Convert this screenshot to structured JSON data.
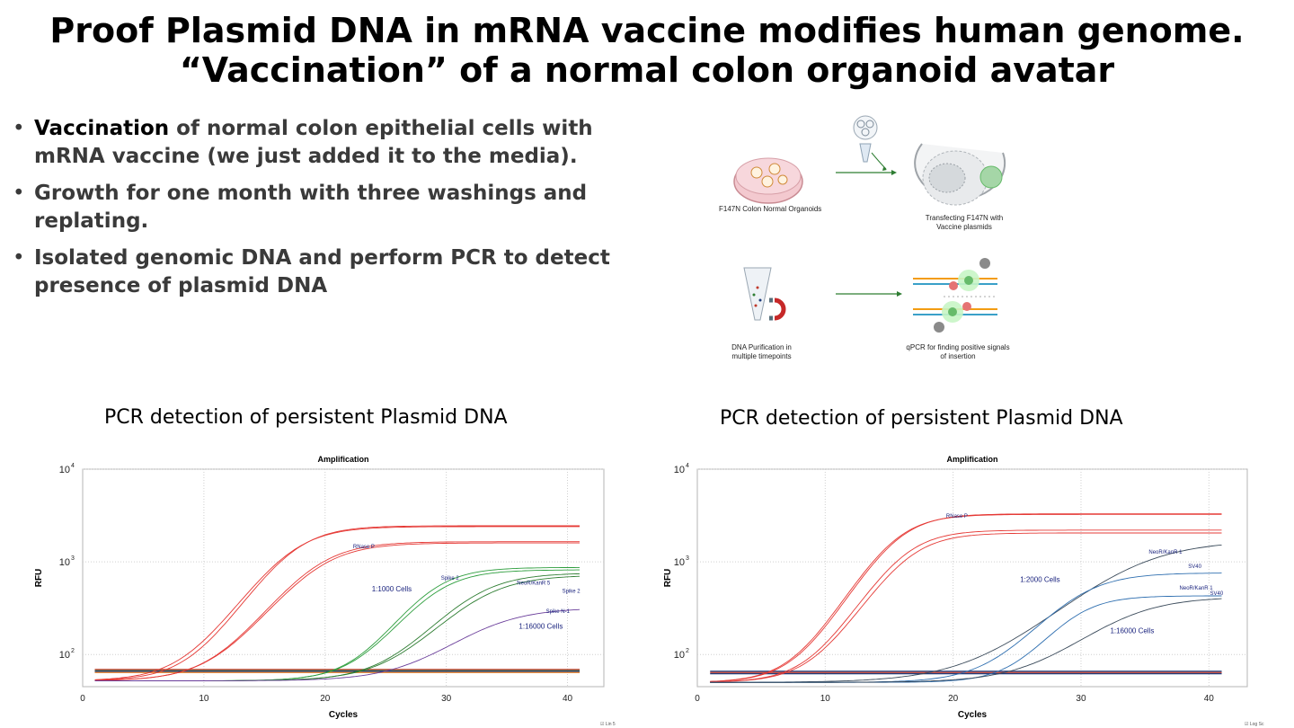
{
  "title": {
    "line1": "Proof Plasmid DNA in mRNA vaccine modifies human genome.",
    "line2": "“Vaccination” of a normal colon organoid avatar"
  },
  "bullets": [
    {
      "strong": "Vaccination",
      "text": " of normal colon epithelial cells with mRNA vaccine (we just added it to the media)."
    },
    {
      "strong": "",
      "text": "Growth for one month with three washings and replating."
    },
    {
      "strong": "",
      "text": "Isolated genomic DNA and perform PCR to detect presence of plasmid DNA"
    }
  ],
  "diagram": {
    "step1": "F147N Colon Normal Organoids",
    "step2": "Transfecting F147N with Vaccine plasmids",
    "step3": "DNA Purification in multiple timepoints",
    "step4": "qPCR for finding positive signals of insertion",
    "icons": [
      "petri-dish-icon",
      "plasmid-tube-icon",
      "cell-transfection-icon",
      "dna-purification-tube-icon",
      "qpcr-probe-icon"
    ],
    "colors": {
      "arrow": "#2e7d32",
      "organoid": "#e57373",
      "fluor": "#66bb6a"
    }
  },
  "subtitles": {
    "left": "PCR detection of persistent Plasmid DNA",
    "right": "PCR detection of persistent Plasmid DNA"
  },
  "footers": {
    "left": "☑ Lin 5",
    "right": "☑ Log Sc"
  },
  "chart_data": [
    {
      "type": "line",
      "title": "Amplification",
      "xlabel": "Cycles",
      "ylabel": "RFU",
      "scale": "log",
      "xlim": [
        0,
        43
      ],
      "ylim": [
        45,
        10000
      ],
      "xticks": [
        0,
        10,
        20,
        30,
        40
      ],
      "yticks": [
        {
          "label": "10",
          "exp": "2",
          "value": 100
        },
        {
          "label": "10",
          "exp": "3",
          "value": 1000
        },
        {
          "label": "10",
          "exp": "4",
          "value": 10000
        }
      ],
      "grid": true,
      "baselines": [
        {
          "value": 69,
          "color": "#c0392b"
        },
        {
          "value": 67,
          "color": "#2e7d32"
        },
        {
          "value": 66,
          "color": "#1f3b7a"
        },
        {
          "value": 64,
          "color": "#e67e22"
        }
      ],
      "series": [
        {
          "name": "RNase P",
          "color": "#e53935",
          "base": 52,
          "plateau": 2450,
          "mid": 17.2,
          "k": 0.48
        },
        {
          "name": "RNase P",
          "color": "#e53935",
          "base": 52,
          "plateau": 2400,
          "mid": 17.0,
          "k": 0.46
        },
        {
          "name": "",
          "color": "#e53935",
          "base": 52,
          "plateau": 1650,
          "mid": 19.0,
          "k": 0.44
        },
        {
          "name": "",
          "color": "#e53935",
          "base": 52,
          "plateau": 1600,
          "mid": 19.2,
          "k": 0.43
        },
        {
          "name": "Spike 2",
          "color": "#2e9e3e",
          "base": 52,
          "plateau": 870,
          "mid": 28.5,
          "k": 0.5
        },
        {
          "name": "",
          "color": "#2e9e3e",
          "base": 52,
          "plateau": 820,
          "mid": 28.8,
          "k": 0.48
        },
        {
          "name": "NeoR/KanR 5",
          "color": "#2e7d32",
          "base": 52,
          "plateau": 760,
          "mid": 32.0,
          "k": 0.42
        },
        {
          "name": "Spike 2",
          "color": "#2e7d32",
          "base": 52,
          "plateau": 720,
          "mid": 32.5,
          "k": 0.4
        },
        {
          "name": "Spike N-1",
          "color": "#6a3d9a",
          "base": 52,
          "plateau": 320,
          "mid": 33.0,
          "k": 0.36
        }
      ],
      "annotations": [
        {
          "text": "RNase P",
          "x": 23.2,
          "y": 1400,
          "size": 6
        },
        {
          "text": "1:1000 Cells",
          "x": 25.5,
          "y": 480,
          "size": 8
        },
        {
          "text": "Spike 2",
          "x": 30.3,
          "y": 640,
          "size": 6
        },
        {
          "text": "NeoR/KanR 5",
          "x": 37.2,
          "y": 570,
          "size": 6
        },
        {
          "text": "Spike 2",
          "x": 40.3,
          "y": 465,
          "size": 6
        },
        {
          "text": "Spike N-1",
          "x": 39.2,
          "y": 280,
          "size": 6
        },
        {
          "text": "1:16000 Cells",
          "x": 37.8,
          "y": 190,
          "size": 8
        }
      ]
    },
    {
      "type": "line",
      "title": "Amplification",
      "xlabel": "Cycles",
      "ylabel": "RFU",
      "scale": "log",
      "xlim": [
        0,
        43
      ],
      "ylim": [
        45,
        10000
      ],
      "xticks": [
        0,
        10,
        20,
        30,
        40
      ],
      "yticks": [
        {
          "label": "10",
          "exp": "2",
          "value": 100
        },
        {
          "label": "10",
          "exp": "3",
          "value": 1000
        },
        {
          "label": "10",
          "exp": "4",
          "value": 10000
        }
      ],
      "grid": true,
      "baselines": [
        {
          "value": 66,
          "color": "#1f3b7a"
        },
        {
          "value": 64,
          "color": "#c0392b"
        },
        {
          "value": 62,
          "color": "#1f3b7a"
        }
      ],
      "series": [
        {
          "name": "RNase P",
          "color": "#e53935",
          "base": 50,
          "plateau": 3300,
          "mid": 15.5,
          "k": 0.55
        },
        {
          "name": "",
          "color": "#e53935",
          "base": 50,
          "plateau": 3250,
          "mid": 15.3,
          "k": 0.55
        },
        {
          "name": "",
          "color": "#e53935",
          "base": 50,
          "plateau": 2200,
          "mid": 16.0,
          "k": 0.54
        },
        {
          "name": "",
          "color": "#e53935",
          "base": 50,
          "plateau": 2050,
          "mid": 16.3,
          "k": 0.53
        },
        {
          "name": "NeoR/KanR 1",
          "color": "#3a4a5a",
          "base": 50,
          "plateau": 1700,
          "mid": 34.0,
          "k": 0.3
        },
        {
          "name": "SV40",
          "color": "#2f6fb0",
          "base": 50,
          "plateau": 760,
          "mid": 29.5,
          "k": 0.45
        },
        {
          "name": "NeoR/KanR 1",
          "color": "#2f6fb0",
          "base": 50,
          "plateau": 430,
          "mid": 29.2,
          "k": 0.55
        },
        {
          "name": "SV40",
          "color": "#3a4a5a",
          "base": 50,
          "plateau": 420,
          "mid": 33.0,
          "k": 0.36
        }
      ],
      "annotations": [
        {
          "text": "RNase P",
          "x": 20.3,
          "y": 3000,
          "size": 6
        },
        {
          "text": "NeoR/KanR 1",
          "x": 36.6,
          "y": 1230,
          "size": 6
        },
        {
          "text": "SV40",
          "x": 38.9,
          "y": 860,
          "size": 6
        },
        {
          "text": "1:2000 Cells",
          "x": 26.8,
          "y": 610,
          "size": 8
        },
        {
          "text": "NeoR/KanR 1",
          "x": 39.0,
          "y": 500,
          "size": 6
        },
        {
          "text": "SV40",
          "x": 40.6,
          "y": 440,
          "size": 6
        },
        {
          "text": "1:16000 Cells",
          "x": 34.0,
          "y": 170,
          "size": 8
        }
      ]
    }
  ]
}
